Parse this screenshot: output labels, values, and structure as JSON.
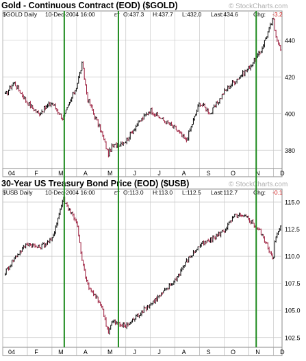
{
  "watermark": "© StockCharts.com",
  "colors": {
    "up": "#000000",
    "down": "#9b1b3b",
    "vline": "#1e8a1e",
    "grid": "#c8c8c8",
    "panel": "#f4f4f4",
    "neg": "#d01010"
  },
  "months": [
    "04",
    "F",
    "M",
    "A",
    "M",
    "J",
    "J",
    "A",
    "S",
    "O",
    "N",
    "D"
  ],
  "vline_months": [
    2.5,
    4.7,
    10.3
  ],
  "panels": [
    {
      "title": "Gold - Continuous Contract (EOD) ($GOLD)",
      "info": {
        "symbol": "$GOLD Daily",
        "date": "10-Dec-2004 16:00",
        "tz": "ET",
        "open": "O:437.3",
        "high": "H:437.7",
        "low": "L:432.0",
        "last": "Last:434.6",
        "chg_label": "Chg:",
        "chg_value": "-3.2"
      }
    },
    {
      "title": "30-Year US Treasury Bond Price (EOD) ($USB)",
      "info": {
        "symbol": "$USB Daily",
        "date": "10-Dec-2004 16:00",
        "tz": "ET",
        "open": "O:113.0",
        "high": "H:113.0",
        "low": "L:112.5",
        "last": "Last:112.7",
        "chg_label": "Chg:",
        "chg_value": "-0.1"
      }
    }
  ],
  "chart_data": [
    {
      "type": "line",
      "title": "Gold - Continuous Contract (EOD) ($GOLD)",
      "series_style": "ohlc bars",
      "x": [
        "Jan-04",
        "Jan-15",
        "Feb-01",
        "Feb-15",
        "Mar-01",
        "Mar-15",
        "Apr-01",
        "Apr-08",
        "Apr-15",
        "May-01",
        "May-10",
        "May-15",
        "Jun-01",
        "Jun-15",
        "Jul-01",
        "Jul-15",
        "Aug-01",
        "Aug-15",
        "Sep-01",
        "Sep-15",
        "Oct-01",
        "Oct-15",
        "Nov-01",
        "Nov-15",
        "Dec-01",
        "Dec-03",
        "Dec-10"
      ],
      "values": [
        410,
        417,
        406,
        400,
        406,
        397,
        415,
        427,
        408,
        390,
        378,
        382,
        385,
        394,
        402,
        397,
        392,
        385,
        406,
        400,
        412,
        418,
        425,
        433,
        452,
        445,
        434.6
      ],
      "ylim": [
        370,
        456
      ],
      "yticks": [
        380,
        400,
        420,
        440
      ],
      "grid": true
    },
    {
      "type": "line",
      "title": "30-Year US Treasury Bond Price (EOD) ($USB)",
      "series_style": "ohlc bars",
      "x": [
        "Jan-04",
        "Jan-15",
        "Feb-01",
        "Feb-15",
        "Mar-01",
        "Mar-15",
        "Apr-01",
        "Apr-08",
        "Apr-15",
        "May-01",
        "May-10",
        "May-15",
        "Jun-01",
        "Jun-15",
        "Jul-01",
        "Jul-15",
        "Aug-01",
        "Aug-15",
        "Sep-01",
        "Sep-15",
        "Oct-01",
        "Oct-15",
        "Nov-01",
        "Nov-15",
        "Dec-01",
        "Dec-03",
        "Dec-10"
      ],
      "values": [
        108.5,
        109.8,
        111.2,
        110.8,
        111.5,
        115.3,
        113.2,
        109.5,
        107.3,
        105.5,
        103.0,
        104.0,
        103.5,
        104.5,
        105.6,
        106.5,
        107.8,
        109.5,
        111.0,
        111.5,
        112.4,
        113.8,
        113.5,
        112.3,
        109.8,
        111.5,
        112.7
      ],
      "ylim": [
        101.6,
        116.2
      ],
      "yticks": [
        102.5,
        105.0,
        107.5,
        110.0,
        112.5,
        115.0
      ],
      "grid": true
    }
  ]
}
